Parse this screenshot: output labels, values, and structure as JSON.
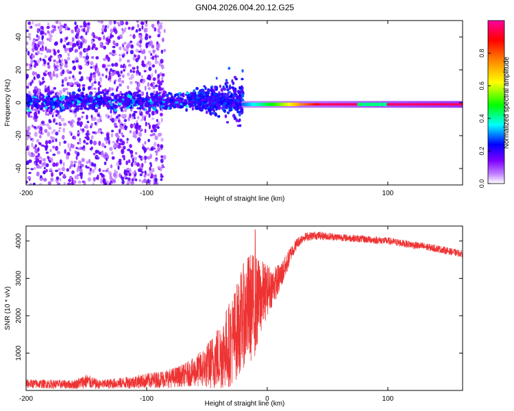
{
  "title": "GN04.2026.004.20.12.G25",
  "chart_data": [
    {
      "type": "heatmap",
      "id": "spectrogram",
      "xlabel": "Height of straight line (km)",
      "ylabel": "Frequency (Hz)",
      "xlim": [
        -200,
        162
      ],
      "ylim": [
        -50,
        50
      ],
      "xticks": [
        -200,
        -100,
        0,
        100
      ],
      "xticklabels": [
        "-200",
        "-100",
        "",
        "100"
      ],
      "yticks": [
        -40,
        -20,
        0,
        20,
        40
      ],
      "yticklabels": [
        "-40",
        "-20",
        "0",
        "20",
        "40"
      ],
      "colorbar": {
        "label": "Normalized spectral amplitude",
        "range": [
          0,
          1
        ],
        "ticks": [
          0.0,
          0.2,
          0.4,
          0.6,
          0.8
        ],
        "ticklabels": [
          "0.0",
          "0.2",
          "0.4",
          "0.6",
          "0.8"
        ],
        "colormap": [
          "#ffffff",
          "#8000ff",
          "#0000ff",
          "#00ffff",
          "#00ff00",
          "#ffff00",
          "#ff8000",
          "#ff0000",
          "#ff00a0"
        ]
      },
      "features": [
        {
          "name": "scattered noise",
          "x_range": [
            -200,
            -85
          ],
          "freq_range": [
            -50,
            50
          ],
          "amplitude": 0.05
        },
        {
          "name": "broad band",
          "x_range": [
            -200,
            -20
          ],
          "freq_range": [
            -5,
            5
          ],
          "amplitude": 0.3
        },
        {
          "name": "rising tail",
          "x_range": [
            -65,
            -20
          ],
          "freq_range": [
            -15,
            18
          ],
          "amplitude": 0.2
        },
        {
          "name": "carrier line",
          "x_range": [
            -20,
            162
          ],
          "freq_center": -1,
          "amplitude": 0.95
        }
      ]
    },
    {
      "type": "line",
      "id": "snr",
      "xlabel": "Height of straight line (km)",
      "ylabel": "SNR (10 * v/v)",
      "xlim": [
        -200,
        162
      ],
      "ylim": [
        0,
        4400
      ],
      "xticks": [
        -200,
        -100,
        0,
        100
      ],
      "xticklabels": [
        "-200",
        "-100",
        "0",
        "100"
      ],
      "yticks": [
        1000,
        2000,
        3000,
        4000
      ],
      "yticklabels": [
        "1000",
        "2000",
        "3000",
        "4000"
      ],
      "color": "#ee3333",
      "x": [
        -200,
        -180,
        -160,
        -150,
        -140,
        -120,
        -100,
        -80,
        -70,
        -60,
        -50,
        -40,
        -30,
        -25,
        -20,
        -15,
        -10,
        -8,
        -5,
        0,
        5,
        10,
        15,
        20,
        25,
        30,
        40,
        60,
        80,
        100,
        120,
        140,
        162
      ],
      "mean": [
        180,
        170,
        160,
        250,
        160,
        200,
        260,
        330,
        400,
        500,
        650,
        900,
        1300,
        1600,
        2000,
        2200,
        2300,
        2350,
        2500,
        2700,
        2800,
        3000,
        3300,
        3700,
        3950,
        4100,
        4150,
        4100,
        4050,
        4000,
        3900,
        3800,
        3650
      ],
      "spread": [
        120,
        120,
        120,
        200,
        120,
        150,
        200,
        260,
        300,
        400,
        600,
        900,
        1200,
        1300,
        1400,
        1500,
        1400,
        1200,
        1000,
        700,
        500,
        400,
        300,
        200,
        150,
        120,
        110,
        100,
        100,
        100,
        100,
        100,
        90
      ],
      "peak": {
        "x": -10,
        "y": 4300
      }
    }
  ]
}
